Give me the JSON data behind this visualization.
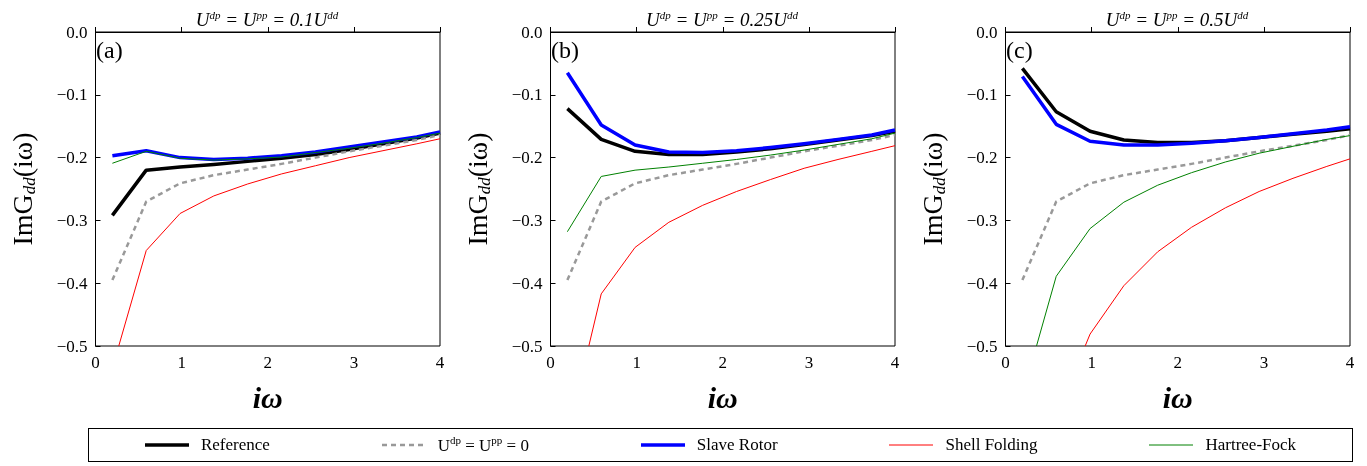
{
  "chart_data": [
    {
      "type": "line",
      "title": "U$^{dp}$ = U$^{pp}$ = 0.1U$^{dd}$",
      "xlabel": "iω",
      "ylabel": "ImG$_{dd}$(iω)",
      "annotations": [
        "(a)"
      ],
      "x": [
        0.196,
        0.589,
        0.982,
        1.374,
        1.767,
        2.16,
        2.553,
        2.945,
        3.338,
        3.731,
        4
      ],
      "series": [
        {
          "name": "Reference",
          "color": "#000000",
          "values": [
            -0.292,
            -0.22,
            -0.215,
            -0.211,
            -0.206,
            -0.201,
            -0.195,
            -0.187,
            -0.178,
            -0.169,
            -0.161
          ]
        },
        {
          "name": "U$^{dp}$ = U$^{pp}$ = 0",
          "color": "#999999",
          "line_style": "dashed",
          "values": [
            -0.395,
            -0.27,
            -0.241,
            -0.228,
            -0.219,
            -0.21,
            -0.2,
            -0.19,
            -0.181,
            -0.172,
            -0.164
          ]
        },
        {
          "name": "Slave Rotor",
          "color": "#0000ff",
          "values": [
            -0.197,
            -0.189,
            -0.2,
            -0.203,
            -0.201,
            -0.197,
            -0.191,
            -0.183,
            -0.175,
            -0.167,
            -0.159
          ]
        },
        {
          "name": "Shell Folding",
          "color": "#ff0000",
          "x": [
            0.27,
            0.589,
            0.982,
            1.374,
            1.767,
            2.16,
            2.553,
            2.945,
            3.338,
            3.731,
            4
          ],
          "values": [
            -0.5,
            -0.348,
            -0.289,
            -0.261,
            -0.242,
            -0.226,
            -0.213,
            -0.2,
            -0.189,
            -0.178,
            -0.17
          ]
        },
        {
          "name": "Hartree-Fock",
          "color": "#008000",
          "values": [
            -0.209,
            -0.19,
            -0.201,
            -0.204,
            -0.202,
            -0.199,
            -0.192,
            -0.185,
            -0.177,
            -0.168,
            -0.161
          ]
        }
      ],
      "xlim": [
        0,
        4
      ],
      "xticks": [
        0,
        1,
        2,
        3,
        4
      ],
      "ylim": [
        -0.5,
        0
      ],
      "yticks": [
        {
          "value": -0.5,
          "label": "−0.5"
        },
        {
          "value": -0.4,
          "label": "−0.4"
        },
        {
          "value": -0.3,
          "label": "−0.3"
        },
        {
          "value": -0.2,
          "label": "−0.2"
        },
        {
          "value": -0.1,
          "label": "−0.1"
        },
        {
          "value": 0,
          "label": "0.0"
        }
      ],
      "grid": false,
      "marker": "none",
      "line_style": "solid",
      "legend": "bottom"
    },
    {
      "type": "line",
      "title": "U$^{dp}$ = U$^{pp}$ = 0.25U$^{dd}$",
      "xlabel": "iω",
      "ylabel": "ImG$_{dd}$(iω)",
      "annotations": [
        "(b)"
      ],
      "x": [
        0.196,
        0.589,
        0.982,
        1.374,
        1.767,
        2.16,
        2.553,
        2.945,
        3.338,
        3.731,
        4
      ],
      "series": [
        {
          "color": "#000000",
          "values": [
            -0.122,
            -0.171,
            -0.19,
            -0.195,
            -0.195,
            -0.191,
            -0.186,
            -0.179,
            -0.172,
            -0.165,
            -0.158
          ]
        },
        {
          "color": "#999999",
          "line_style": "dashed",
          "values": [
            -0.395,
            -0.27,
            -0.241,
            -0.228,
            -0.219,
            -0.21,
            -0.2,
            -0.19,
            -0.181,
            -0.172,
            -0.164
          ]
        },
        {
          "color": "#0000ff",
          "values": [
            -0.065,
            -0.148,
            -0.18,
            -0.191,
            -0.192,
            -0.189,
            -0.184,
            -0.178,
            -0.171,
            -0.164,
            -0.156
          ]
        },
        {
          "color": "#ff0000",
          "x": [
            0.445,
            0.589,
            0.982,
            1.374,
            1.767,
            2.16,
            2.553,
            2.945,
            3.338,
            3.731,
            4
          ],
          "values": [
            -0.5,
            -0.417,
            -0.343,
            -0.303,
            -0.276,
            -0.254,
            -0.235,
            -0.217,
            -0.203,
            -0.19,
            -0.181
          ]
        },
        {
          "color": "#008000",
          "values": [
            -0.318,
            -0.23,
            -0.22,
            -0.215,
            -0.209,
            -0.203,
            -0.196,
            -0.188,
            -0.179,
            -0.17,
            -0.161
          ]
        }
      ],
      "xlim": [
        0,
        4
      ],
      "xticks": [
        0,
        1,
        2,
        3,
        4
      ],
      "ylim": [
        -0.5,
        0
      ],
      "yticks": [
        {
          "value": -0.5,
          "label": "−0.5"
        },
        {
          "value": -0.4,
          "label": "−0.4"
        },
        {
          "value": -0.3,
          "label": "−0.3"
        },
        {
          "value": -0.2,
          "label": "−0.2"
        },
        {
          "value": -0.1,
          "label": "−0.1"
        },
        {
          "value": 0,
          "label": "0.0"
        }
      ],
      "grid": false,
      "marker": "none",
      "line_style": "solid"
    },
    {
      "type": "line",
      "title": "U$^{dp}$ = U$^{pp}$ = 0.5U$^{dd}$",
      "xlabel": "iω",
      "ylabel": "ImG$_{dd}$(iω)",
      "annotations": [
        "(c)"
      ],
      "x": [
        0.196,
        0.589,
        0.982,
        1.374,
        1.767,
        2.16,
        2.553,
        2.945,
        3.338,
        3.731,
        4
      ],
      "series": [
        {
          "color": "#000000",
          "values": [
            -0.058,
            -0.127,
            -0.158,
            -0.172,
            -0.176,
            -0.176,
            -0.173,
            -0.168,
            -0.163,
            -0.158,
            -0.154
          ]
        },
        {
          "color": "#999999",
          "line_style": "dashed",
          "values": [
            -0.395,
            -0.27,
            -0.241,
            -0.228,
            -0.219,
            -0.21,
            -0.2,
            -0.19,
            -0.181,
            -0.172,
            -0.164
          ]
        },
        {
          "color": "#0000ff",
          "values": [
            -0.071,
            -0.147,
            -0.174,
            -0.18,
            -0.18,
            -0.177,
            -0.173,
            -0.168,
            -0.162,
            -0.156,
            -0.151
          ]
        },
        {
          "color": "#ff0000",
          "x": [
            0.925,
            0.982,
            1.374,
            1.767,
            2.16,
            2.553,
            2.945,
            3.338,
            3.731,
            4
          ],
          "values": [
            -0.5,
            -0.481,
            -0.404,
            -0.35,
            -0.311,
            -0.28,
            -0.254,
            -0.233,
            -0.214,
            -0.202
          ]
        },
        {
          "color": "#008000",
          "x": [
            0.36,
            0.589,
            0.982,
            1.374,
            1.767,
            2.16,
            2.553,
            2.945,
            3.338,
            3.731,
            4
          ],
          "values": [
            -0.5,
            -0.389,
            -0.313,
            -0.271,
            -0.244,
            -0.224,
            -0.207,
            -0.193,
            -0.182,
            -0.171,
            -0.165
          ]
        }
      ],
      "xlim": [
        0,
        4
      ],
      "xticks": [
        0,
        1,
        2,
        3,
        4
      ],
      "ylim": [
        -0.5,
        0
      ],
      "yticks": [
        {
          "value": -0.5,
          "label": "−0.5"
        },
        {
          "value": -0.4,
          "label": "−0.4"
        },
        {
          "value": -0.3,
          "label": "−0.3"
        },
        {
          "value": -0.2,
          "label": "−0.2"
        },
        {
          "value": -0.1,
          "label": "−0.1"
        },
        {
          "value": 0,
          "label": "0.0"
        }
      ],
      "grid": false,
      "marker": "none",
      "line_style": "solid"
    }
  ]
}
